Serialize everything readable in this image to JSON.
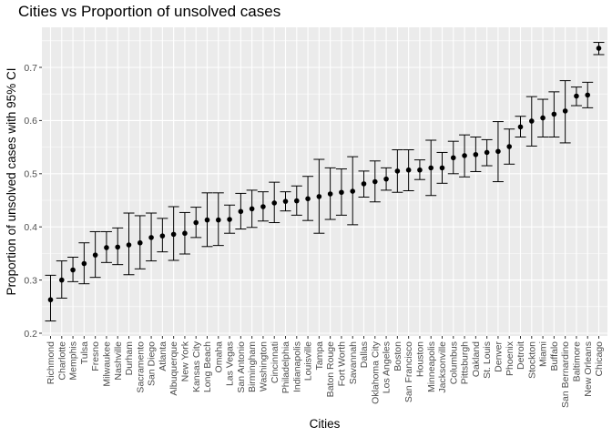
{
  "chart_data": {
    "type": "scatter",
    "title": "Cities vs Proportion of unsolved cases",
    "xlabel": "Cities",
    "ylabel": "Proportion of unsolved cases with 95% CI",
    "ylim": [
      0.2,
      0.75
    ],
    "yticks": [
      0.2,
      0.3,
      0.4,
      0.5,
      0.6,
      0.7
    ],
    "ytick_labels": [
      "0.2",
      "0.3",
      "0.4",
      "0.5",
      "0.6",
      "0.7"
    ],
    "grid": true,
    "error_bars": true,
    "colors": {
      "panel": "#ebebeb",
      "grid": "#ffffff",
      "point": "#000000",
      "tick_text": "#4d4d4d"
    },
    "points": [
      {
        "city": "Richmond",
        "y": 0.263,
        "lo": 0.223,
        "hi": 0.309
      },
      {
        "city": "Charlotte",
        "y": 0.3,
        "lo": 0.266,
        "hi": 0.336
      },
      {
        "city": "Memphis",
        "y": 0.319,
        "lo": 0.297,
        "hi": 0.343
      },
      {
        "city": "Tulsa",
        "y": 0.331,
        "lo": 0.293,
        "hi": 0.37
      },
      {
        "city": "Fresno",
        "y": 0.347,
        "lo": 0.305,
        "hi": 0.391
      },
      {
        "city": "Milwaukee",
        "y": 0.361,
        "lo": 0.333,
        "hi": 0.391
      },
      {
        "city": "Nashville",
        "y": 0.362,
        "lo": 0.329,
        "hi": 0.398
      },
      {
        "city": "Durham",
        "y": 0.366,
        "lo": 0.31,
        "hi": 0.426
      },
      {
        "city": "Sacramento",
        "y": 0.37,
        "lo": 0.321,
        "hi": 0.421
      },
      {
        "city": "San Diego",
        "y": 0.38,
        "lo": 0.336,
        "hi": 0.426
      },
      {
        "city": "Atlanta",
        "y": 0.383,
        "lo": 0.353,
        "hi": 0.416
      },
      {
        "city": "Albuquerque",
        "y": 0.386,
        "lo": 0.337,
        "hi": 0.438
      },
      {
        "city": "New York",
        "y": 0.388,
        "lo": 0.349,
        "hi": 0.427
      },
      {
        "city": "Kansas City",
        "y": 0.408,
        "lo": 0.38,
        "hi": 0.437
      },
      {
        "city": "Long Beach",
        "y": 0.413,
        "lo": 0.363,
        "hi": 0.464
      },
      {
        "city": "Omaha",
        "y": 0.413,
        "lo": 0.365,
        "hi": 0.464
      },
      {
        "city": "Las Vegas",
        "y": 0.414,
        "lo": 0.388,
        "hi": 0.441
      },
      {
        "city": "San Antonio",
        "y": 0.429,
        "lo": 0.396,
        "hi": 0.463
      },
      {
        "city": "Birmingham",
        "y": 0.434,
        "lo": 0.399,
        "hi": 0.469
      },
      {
        "city": "Washington",
        "y": 0.438,
        "lo": 0.411,
        "hi": 0.466
      },
      {
        "city": "Cincinnati",
        "y": 0.445,
        "lo": 0.408,
        "hi": 0.484
      },
      {
        "city": "Philadelphia",
        "y": 0.448,
        "lo": 0.43,
        "hi": 0.466
      },
      {
        "city": "Indianapolis",
        "y": 0.449,
        "lo": 0.422,
        "hi": 0.477
      },
      {
        "city": "Louisville",
        "y": 0.453,
        "lo": 0.412,
        "hi": 0.495
      },
      {
        "city": "Tampa",
        "y": 0.457,
        "lo": 0.388,
        "hi": 0.527
      },
      {
        "city": "Baton Rouge",
        "y": 0.462,
        "lo": 0.414,
        "hi": 0.511
      },
      {
        "city": "Fort Worth",
        "y": 0.465,
        "lo": 0.422,
        "hi": 0.509
      },
      {
        "city": "Savannah",
        "y": 0.467,
        "lo": 0.404,
        "hi": 0.532
      },
      {
        "city": "Dallas",
        "y": 0.481,
        "lo": 0.456,
        "hi": 0.505
      },
      {
        "city": "Oklahoma City",
        "y": 0.485,
        "lo": 0.447,
        "hi": 0.524
      },
      {
        "city": "Los Angeles",
        "y": 0.49,
        "lo": 0.469,
        "hi": 0.511
      },
      {
        "city": "Boston",
        "y": 0.505,
        "lo": 0.465,
        "hi": 0.545
      },
      {
        "city": "San Francisco",
        "y": 0.507,
        "lo": 0.468,
        "hi": 0.545
      },
      {
        "city": "Houston",
        "y": 0.507,
        "lo": 0.489,
        "hi": 0.526
      },
      {
        "city": "Minneapolis",
        "y": 0.511,
        "lo": 0.459,
        "hi": 0.563
      },
      {
        "city": "Jacksonville",
        "y": 0.511,
        "lo": 0.482,
        "hi": 0.54
      },
      {
        "city": "Columbus",
        "y": 0.53,
        "lo": 0.5,
        "hi": 0.561
      },
      {
        "city": "Pittsburgh",
        "y": 0.534,
        "lo": 0.494,
        "hi": 0.573
      },
      {
        "city": "Oakland",
        "y": 0.536,
        "lo": 0.504,
        "hi": 0.569
      },
      {
        "city": "St. Louis",
        "y": 0.54,
        "lo": 0.515,
        "hi": 0.564
      },
      {
        "city": "Denver",
        "y": 0.542,
        "lo": 0.485,
        "hi": 0.598
      },
      {
        "city": "Phoenix",
        "y": 0.551,
        "lo": 0.518,
        "hi": 0.584
      },
      {
        "city": "Detroit",
        "y": 0.588,
        "lo": 0.569,
        "hi": 0.608
      },
      {
        "city": "Stockton",
        "y": 0.599,
        "lo": 0.552,
        "hi": 0.645
      },
      {
        "city": "Miami",
        "y": 0.605,
        "lo": 0.569,
        "hi": 0.64
      },
      {
        "city": "Buffalo",
        "y": 0.612,
        "lo": 0.569,
        "hi": 0.654
      },
      {
        "city": "San Bernardino",
        "y": 0.618,
        "lo": 0.558,
        "hi": 0.675
      },
      {
        "city": "Baltimore",
        "y": 0.646,
        "lo": 0.628,
        "hi": 0.663
      },
      {
        "city": "New Orleans",
        "y": 0.648,
        "lo": 0.624,
        "hi": 0.672
      },
      {
        "city": "Chicago",
        "y": 0.736,
        "lo": 0.724,
        "hi": 0.747
      }
    ]
  }
}
